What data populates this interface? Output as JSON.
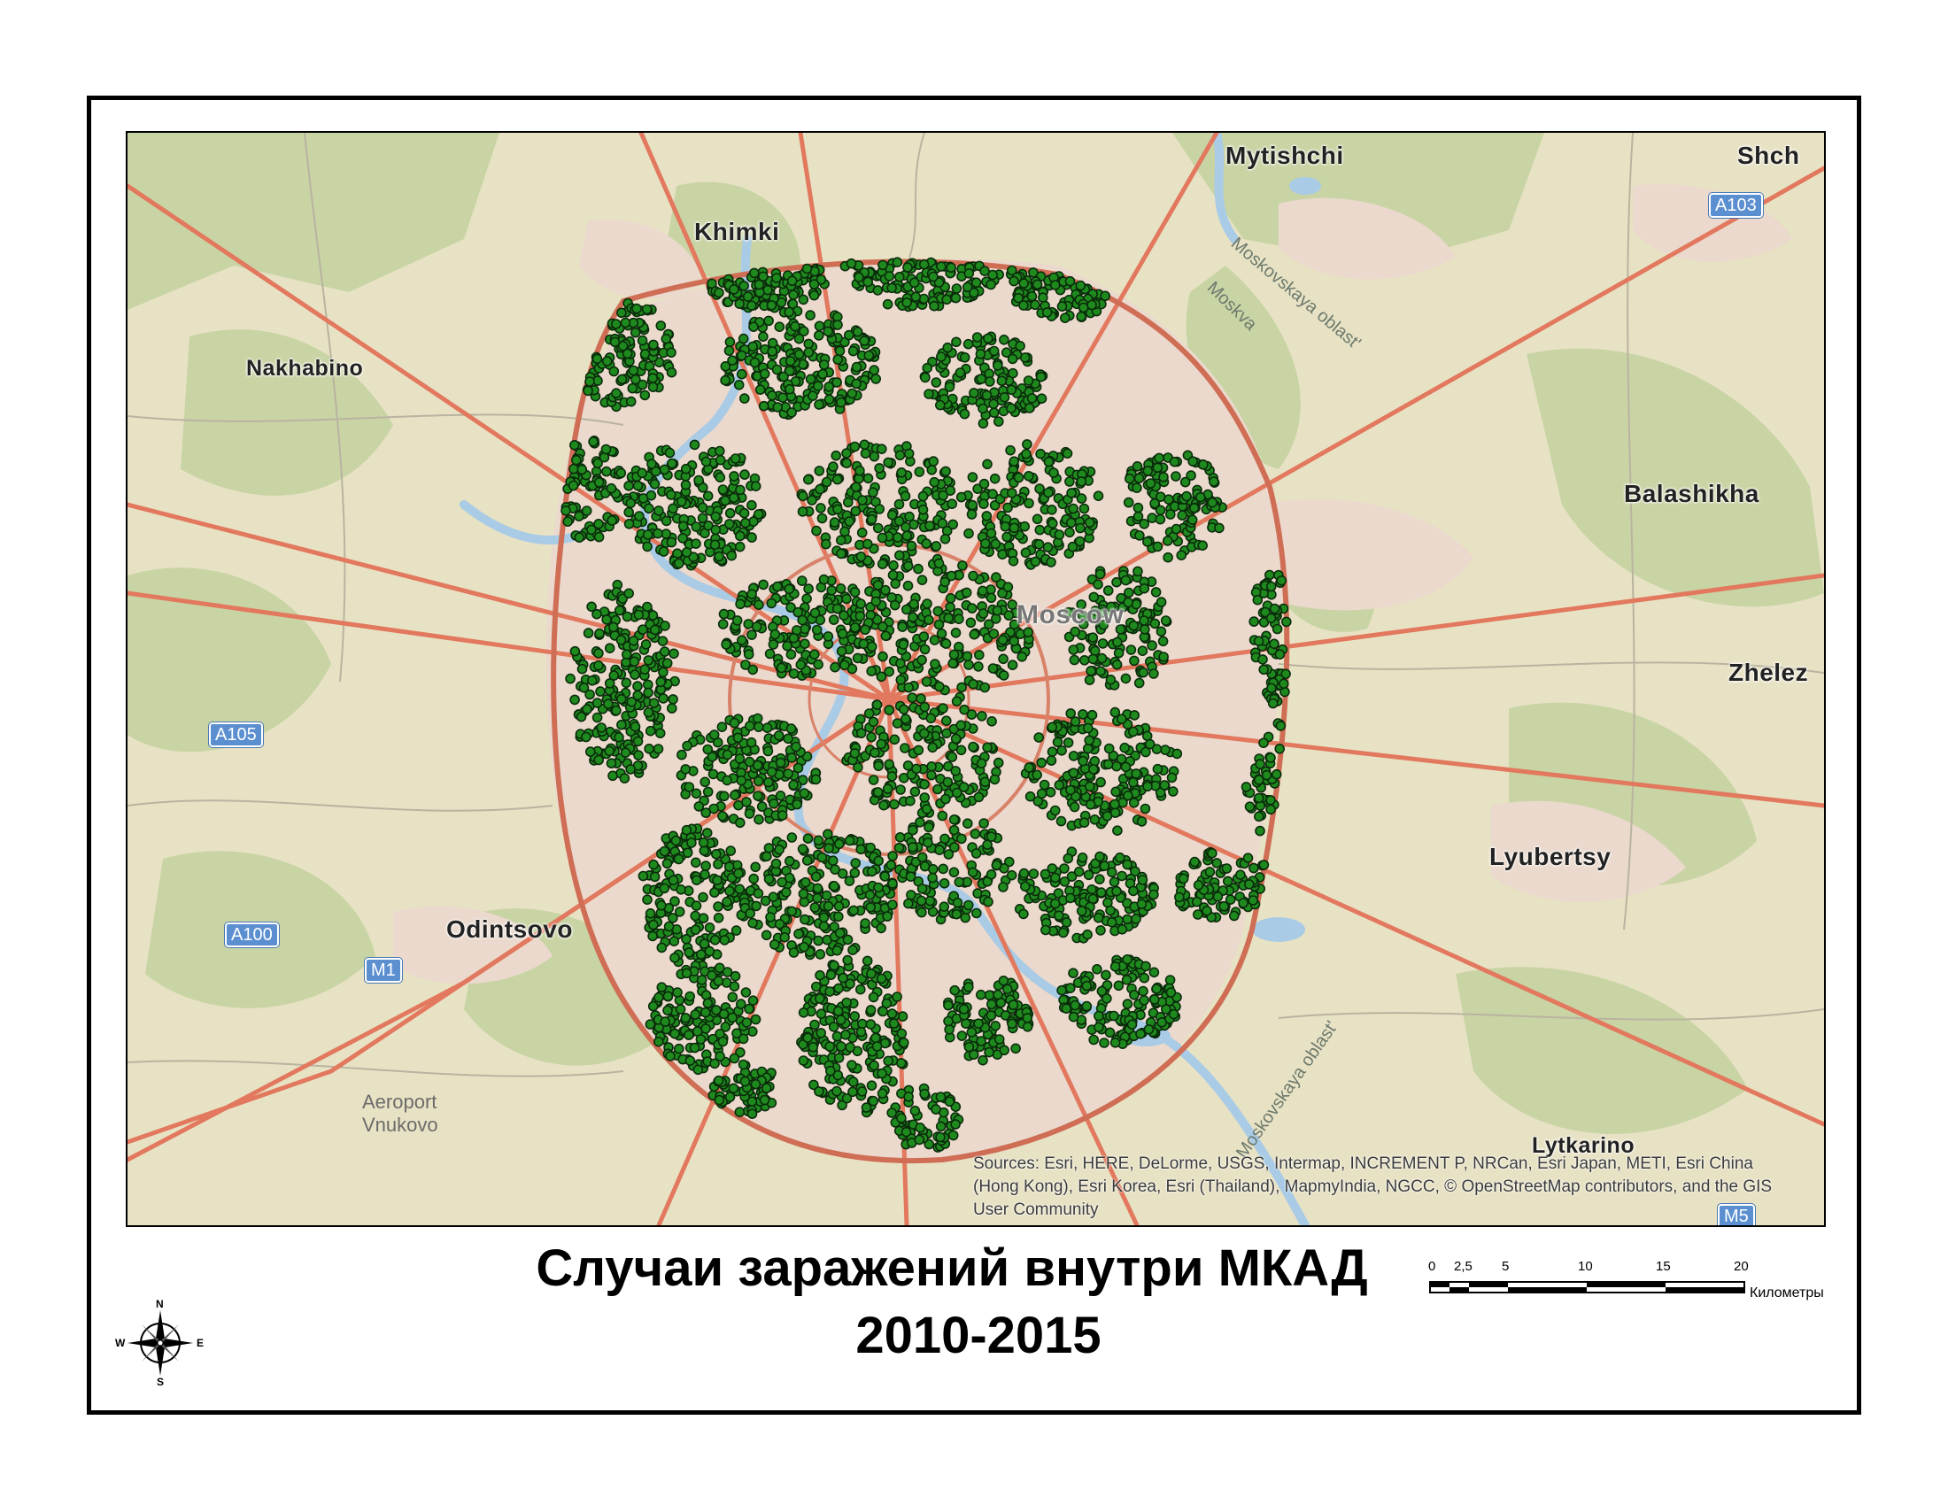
{
  "map": {
    "labels": {
      "mytishchi": "Mytishchi",
      "shch": "Shch",
      "khimki": "Khimki",
      "nakhabino": "Nakhabino",
      "balashikha": "Balashikha",
      "moscow": "Moscow",
      "zhelez": "Zhelez",
      "lyubertsy": "Lyubertsy",
      "odintsovo": "Odintsovo",
      "lytkarino": "Lytkarino",
      "moskovskaya_north": "Moskovskaya oblast'",
      "moskovskaya_south": "Moskovskaya oblast'",
      "moskva": "Moskva",
      "aeroport": "Aeroport",
      "vnukovo": "Vnukovo"
    },
    "shields": {
      "a103": "A103",
      "a105": "A105",
      "a100": "A100",
      "m1": "M1",
      "m5": "M5"
    },
    "attribution": "Sources: Esri, HERE, DeLorme, USGS, Intermap, INCREMENT P, NRCan, Esri Japan, METI, Esri China (Hong Kong), Esri Korea, Esri (Thailand), MapmyIndia, NGCC, © OpenStreetMap contributors, and the GIS User Community",
    "point_color": "#1e8a1e",
    "point_outline": "#0b2a0b",
    "colors": {
      "base": "#e8e2c4",
      "forest": "#c9d4a5",
      "urban": "#ead9cc",
      "water": "#a9cbe6",
      "road": "#e2785e",
      "ring": "#cf6d55"
    }
  },
  "title": {
    "line1": "Случаи заражений внутри МКАД",
    "line2": "2010-2015"
  },
  "scale": {
    "ticks": [
      "0",
      "2,5",
      "5",
      "10",
      "15",
      "20"
    ],
    "unit": "Километры"
  },
  "compass": {
    "n": "N",
    "s": "S",
    "e": "E",
    "w": "W"
  }
}
